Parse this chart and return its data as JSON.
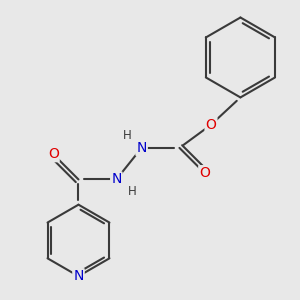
{
  "bg_color": "#e8e8e8",
  "bond_color": "#3a3a3a",
  "atom_colors": {
    "O": "#e00000",
    "N": "#0000cc",
    "H": "#3a3a3a",
    "C": "#3a3a3a"
  },
  "bond_width": 1.5,
  "font_size_atom": 10,
  "font_size_H": 8.5
}
